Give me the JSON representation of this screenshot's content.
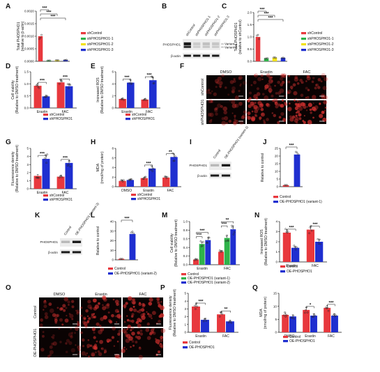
{
  "colors": {
    "red": "#e8383d",
    "green": "#2fb34a",
    "yellow": "#f2e21a",
    "blue": "#1f2fd0",
    "dark": "#111111",
    "band": "#1a1a1a",
    "fluor_red": "#d2312f"
  },
  "chart_data": [
    {
      "id": "A",
      "type": "bar",
      "ylabel": "Total PHOSPHO1 (relative to β-actin)",
      "yticks": [
        "0.0000",
        "0.0005",
        "0.0010",
        "0.0015",
        "0.0020"
      ],
      "ylim": [
        0,
        0.002
      ],
      "categories": [
        "shControl",
        "shPHOSPHO1-1",
        "shPHOSPHO1-2",
        "shPHOSPHO1-3"
      ],
      "values": [
        0.001,
        3e-05,
        4e-05,
        5e-05
      ],
      "series": [
        {
          "name": "shControl",
          "color": "#e8383d"
        },
        {
          "name": "shPHOSPHO1-1",
          "color": "#2fb34a"
        },
        {
          "name": "shPHOSPHO1-2",
          "color": "#f2e21a"
        },
        {
          "name": "shPHOSPHO1-3",
          "color": "#1f2fd0"
        }
      ],
      "significance": [
        "***",
        "***",
        "***"
      ]
    },
    {
      "id": "B",
      "type": "western_blot",
      "lanes": [
        "shControl",
        "shPHOSPHO1-1",
        "shPHOSPHO1-2",
        "shPHOSPHO1-3"
      ],
      "rows": [
        "PHOSPHO1",
        "β-actin"
      ],
      "band_labels": [
        "Variant-1",
        "Variant-2"
      ]
    },
    {
      "id": "C",
      "type": "bar",
      "ylabel": "Total PHOSPHO1 (relative to shControl)",
      "yticks": [
        "0.0",
        "0.5",
        "1.0",
        "1.5",
        "2.0"
      ],
      "ylim": [
        0,
        2
      ],
      "categories": [
        "shControl",
        "shPHOSPHO1-1",
        "shPHOSPHO1-2",
        "shPHOSPHO1-3"
      ],
      "values": [
        1.0,
        0.12,
        0.15,
        0.14
      ],
      "series": [
        {
          "name": "shControl",
          "color": "#e8383d"
        },
        {
          "name": "shPHOSPHO1-1",
          "color": "#2fb34a"
        },
        {
          "name": "shPHOSPHO1-2",
          "color": "#f2e21a"
        },
        {
          "name": "shPHOSPHO1-3",
          "color": "#1f2fd0"
        }
      ],
      "significance": [
        "***",
        "***",
        "***"
      ]
    },
    {
      "id": "D",
      "type": "bar",
      "ylabel": "Cell viability (Relative to DMSO treatment)",
      "yticks": [
        "0.0",
        "0.5",
        "1.0",
        "1.5"
      ],
      "ylim": [
        0,
        1.5
      ],
      "categories": [
        "Erastin",
        "FAC"
      ],
      "series": [
        {
          "name": "shControl",
          "color": "#e8383d",
          "values": [
            0.92,
            1.06
          ]
        },
        {
          "name": "shPHOSPHO1",
          "color": "#1f2fd0",
          "values": [
            0.48,
            0.9
          ]
        }
      ],
      "significance": [
        "***",
        "***"
      ]
    },
    {
      "id": "E",
      "type": "bar",
      "ylabel": "Increased ROS (Relative to DMSO treatment)",
      "yticks": [
        "0",
        "2",
        "4",
        "6"
      ],
      "ylim": [
        0,
        6
      ],
      "categories": [
        "Erastin",
        "FAC"
      ],
      "series": [
        {
          "name": "shControl",
          "color": "#e8383d",
          "values": [
            1.5,
            1.4
          ]
        },
        {
          "name": "shPHOSPHO1",
          "color": "#1f2fd0",
          "values": [
            4.2,
            4.6
          ]
        }
      ],
      "significance": [
        "***",
        "***"
      ]
    },
    {
      "id": "F",
      "type": "image_grid",
      "columns": [
        "DMSO",
        "Erastin",
        "FAC"
      ],
      "rows": [
        "shControl",
        "shPHOSPHO1"
      ],
      "intensity": [
        [
          0.3,
          0.55,
          0.5
        ],
        [
          0.45,
          0.8,
          0.85
        ]
      ]
    },
    {
      "id": "G",
      "type": "bar",
      "ylabel": "Fluorescence density (Relative to DMSO treatment)",
      "yticks": [
        "0",
        "1",
        "2",
        "3",
        "4",
        "5"
      ],
      "ylim": [
        0,
        5
      ],
      "categories": [
        "Erastin",
        "FAC"
      ],
      "series": [
        {
          "name": "shControl",
          "color": "#e8383d",
          "values": [
            1.6,
            1.5
          ]
        },
        {
          "name": "shPHOSPHO1",
          "color": "#1f2fd0",
          "values": [
            3.7,
            3.2
          ]
        }
      ],
      "significance": [
        "***",
        "***"
      ]
    },
    {
      "id": "H",
      "type": "bar",
      "ylabel": "MDA (nmol/mg of protein)",
      "yticks": [
        "0",
        "2",
        "4",
        "6",
        "8"
      ],
      "ylim": [
        0,
        8
      ],
      "categories": [
        "DMSO",
        "Erastin",
        "FAC"
      ],
      "series": [
        {
          "name": "shControl",
          "color": "#e8383d",
          "values": [
            1.2,
            1.8,
            1.9
          ]
        },
        {
          "name": "shPHOSPHO1",
          "color": "#1f2fd0",
          "values": [
            1.4,
            3.8,
            6.2
          ]
        }
      ],
      "significance": [
        "***",
        "**"
      ]
    },
    {
      "id": "I",
      "type": "western_blot",
      "lanes": [
        "Control",
        "OE-PHOSPHO1 (variant-1)"
      ],
      "rows": [
        "PHOSPHO1",
        "β-actin"
      ]
    },
    {
      "id": "J",
      "type": "bar",
      "ylabel": "Relative to control",
      "yticks": [
        "0",
        "5",
        "10",
        "15",
        "20",
        "25"
      ],
      "ylim": [
        0,
        25
      ],
      "categories": [
        "Control",
        "OE-PHOSPHO1 (variant-1)"
      ],
      "values": [
        1,
        21
      ],
      "series": [
        {
          "name": "Control",
          "color": "#e8383d"
        },
        {
          "name": "OE-PHOSPHO1 (variant-1)",
          "color": "#1f2fd0"
        }
      ],
      "significance": [
        "***"
      ]
    },
    {
      "id": "K",
      "type": "western_blot",
      "lanes": [
        "Control",
        "OE-PHOSPHO1 (variant-2)"
      ],
      "rows": [
        "PHOSPHO1",
        "β-actin"
      ]
    },
    {
      "id": "L",
      "type": "bar",
      "ylabel": "Relative to control",
      "yticks": [
        "0",
        "10",
        "20",
        "30",
        "40"
      ],
      "ylim": [
        0,
        40
      ],
      "categories": [
        "Control",
        "OE-PHOSPHO1 (variant-2)"
      ],
      "values": [
        1,
        27
      ],
      "series": [
        {
          "name": "Control",
          "color": "#e8383d"
        },
        {
          "name": "OE-PHOSPHO1 (variant-2)",
          "color": "#1f2fd0"
        }
      ],
      "significance": [
        "***"
      ]
    },
    {
      "id": "M",
      "type": "bar",
      "ylabel": "Cell viability (Relative to DMSO treatment)",
      "yticks": [
        "0.0",
        "0.2",
        "0.4",
        "0.6",
        "0.8",
        "1.0"
      ],
      "ylim": [
        0,
        1.0
      ],
      "categories": [
        "Erastin",
        "FAC"
      ],
      "series": [
        {
          "name": "Control",
          "color": "#e8383d",
          "values": [
            0.12,
            0.3
          ]
        },
        {
          "name": "OE-PHOSPHO1 (variant-1)",
          "color": "#2fb34a",
          "values": [
            0.48,
            0.62
          ]
        },
        {
          "name": "OE-PHOSPHO1 (variant-2)",
          "color": "#1f2fd0",
          "values": [
            0.57,
            0.82
          ]
        }
      ],
      "significance": [
        "***",
        "***",
        "***",
        "**"
      ]
    },
    {
      "id": "N",
      "type": "bar",
      "ylabel": "Increased ROS (Relative to DMSO treatment)",
      "yticks": [
        "0",
        "1",
        "2",
        "3",
        "4"
      ],
      "ylim": [
        0,
        4
      ],
      "categories": [
        "Erastin",
        "FAC"
      ],
      "series": [
        {
          "name": "Control",
          "color": "#e8383d",
          "values": [
            2.9,
            3.2
          ]
        },
        {
          "name": "OE-PHOSPHO1",
          "color": "#1f2fd0",
          "values": [
            1.4,
            2.0
          ]
        }
      ],
      "significance": [
        "***",
        "***"
      ]
    },
    {
      "id": "O",
      "type": "image_grid",
      "columns": [
        "DMSO",
        "Erastin",
        "FAC"
      ],
      "rows": [
        "Control",
        "OE-PHOSPHO1"
      ],
      "intensity": [
        [
          0.55,
          0.8,
          0.85
        ],
        [
          0.3,
          0.65,
          0.7
        ]
      ]
    },
    {
      "id": "P",
      "type": "bar",
      "ylabel": "Fluorescence density (Relative to DMSO treatment)",
      "yticks": [
        "0",
        "1",
        "2",
        "3",
        "4",
        "5"
      ],
      "ylim": [
        0,
        5
      ],
      "categories": [
        "Erastin",
        "FAC"
      ],
      "series": [
        {
          "name": "Control",
          "color": "#e8383d",
          "values": [
            3.3,
            2.3
          ]
        },
        {
          "name": "OE-PHOSPHO1",
          "color": "#1f2fd0",
          "values": [
            1.6,
            1.4
          ]
        }
      ],
      "significance": [
        "***",
        "**"
      ]
    },
    {
      "id": "Q",
      "type": "bar",
      "ylabel": "MDA (nmol/mg of protein)",
      "yticks": [
        "0",
        "5",
        "10",
        "15"
      ],
      "ylim": [
        0,
        15
      ],
      "categories": [
        "DMSO",
        "Erastin",
        "FAC"
      ],
      "series": [
        {
          "name": "Control",
          "color": "#e8383d",
          "values": [
            6.7,
            8.6,
            9.4
          ]
        },
        {
          "name": "OE-PHOSPHO1",
          "color": "#1f2fd0",
          "values": [
            6.1,
            6.4,
            6.4
          ]
        }
      ],
      "significance": [
        "*",
        "***"
      ]
    }
  ]
}
